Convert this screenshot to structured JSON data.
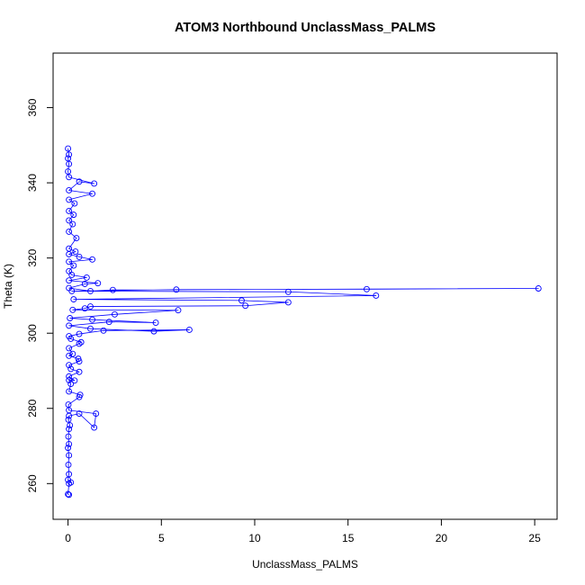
{
  "chart_data": {
    "type": "scatter",
    "title": "ATOM3 Northbound UnclassMass_PALMS",
    "xlabel": "UnclassMass_PALMS",
    "ylabel": "Theta (K)",
    "xlim": [
      -0.8,
      26.2
    ],
    "ylim": [
      250.5,
      374.5
    ],
    "xticks": [
      0,
      5,
      10,
      15,
      20,
      25
    ],
    "yticks": [
      260,
      280,
      300,
      320,
      340,
      360
    ],
    "grid": false,
    "legend": "none",
    "series": [
      {
        "color": "#0000ff",
        "marker": "open-circle",
        "connected": true,
        "points": [
          [
            0.05,
            257.0
          ],
          [
            0.0,
            257.2
          ],
          [
            0.05,
            260.0
          ],
          [
            0.15,
            260.3
          ],
          [
            0.0,
            261.0
          ],
          [
            0.05,
            262.5
          ],
          [
            0.02,
            265.0
          ],
          [
            0.05,
            267.5
          ],
          [
            0.0,
            269.5
          ],
          [
            0.05,
            270.5
          ],
          [
            0.02,
            272.5
          ],
          [
            0.05,
            274.5
          ],
          [
            0.1,
            275.5
          ],
          [
            0.02,
            277.0
          ],
          [
            0.05,
            278.0
          ],
          [
            0.6,
            278.6
          ],
          [
            1.4,
            274.9
          ],
          [
            1.5,
            278.6
          ],
          [
            0.05,
            279.5
          ],
          [
            0.02,
            281.0
          ],
          [
            0.6,
            283.0
          ],
          [
            0.65,
            283.6
          ],
          [
            0.05,
            284.5
          ],
          [
            0.15,
            286.5
          ],
          [
            0.05,
            287.5
          ],
          [
            0.35,
            287.4
          ],
          [
            0.05,
            288.5
          ],
          [
            0.6,
            289.7
          ],
          [
            0.15,
            290.5
          ],
          [
            0.05,
            291.5
          ],
          [
            0.6,
            292.5
          ],
          [
            0.55,
            293.2
          ],
          [
            0.05,
            294.0
          ],
          [
            0.25,
            294.5
          ],
          [
            0.05,
            296.0
          ],
          [
            0.6,
            297.2
          ],
          [
            0.7,
            297.6
          ],
          [
            0.15,
            298.5
          ],
          [
            0.05,
            299.2
          ],
          [
            0.6,
            299.8
          ],
          [
            1.9,
            300.7
          ],
          [
            6.5,
            300.9
          ],
          [
            4.6,
            300.5
          ],
          [
            1.2,
            301.2
          ],
          [
            0.05,
            302.0
          ],
          [
            2.2,
            303.0
          ],
          [
            4.7,
            302.8
          ],
          [
            1.3,
            303.6
          ],
          [
            0.1,
            304.0
          ],
          [
            2.5,
            305.0
          ],
          [
            5.9,
            306.1
          ],
          [
            0.25,
            306.2
          ],
          [
            0.9,
            306.6
          ],
          [
            1.2,
            307.1
          ],
          [
            9.5,
            307.3
          ],
          [
            11.8,
            308.2
          ],
          [
            9.3,
            308.7
          ],
          [
            0.3,
            309.0
          ],
          [
            16.5,
            310.0
          ],
          [
            11.8,
            311.0
          ],
          [
            0.2,
            311.2
          ],
          [
            5.8,
            311.6
          ],
          [
            16.0,
            311.7
          ],
          [
            25.2,
            311.9
          ],
          [
            2.4,
            311.5
          ],
          [
            1.2,
            311.2
          ],
          [
            0.05,
            312.0
          ],
          [
            0.9,
            313.1
          ],
          [
            1.6,
            313.3
          ],
          [
            0.05,
            314.0
          ],
          [
            1.0,
            314.8
          ],
          [
            0.2,
            315.5
          ],
          [
            0.05,
            316.5
          ],
          [
            0.3,
            318.0
          ],
          [
            0.05,
            319.0
          ],
          [
            1.3,
            319.6
          ],
          [
            0.6,
            320.3
          ],
          [
            0.05,
            321.0
          ],
          [
            0.4,
            321.7
          ],
          [
            0.05,
            322.5
          ],
          [
            0.45,
            325.3
          ],
          [
            0.05,
            327.0
          ],
          [
            0.25,
            329.0
          ],
          [
            0.05,
            330.0
          ],
          [
            0.3,
            331.5
          ],
          [
            0.05,
            332.5
          ],
          [
            0.35,
            334.5
          ],
          [
            0.05,
            335.5
          ],
          [
            1.3,
            337.1
          ],
          [
            0.05,
            338.0
          ],
          [
            0.6,
            340.3
          ],
          [
            1.4,
            339.8
          ],
          [
            0.05,
            341.5
          ],
          [
            0.0,
            343.0
          ],
          [
            0.05,
            345.0
          ],
          [
            0.0,
            346.5
          ],
          [
            0.05,
            347.5
          ],
          [
            0.0,
            349.1
          ]
        ]
      }
    ]
  }
}
